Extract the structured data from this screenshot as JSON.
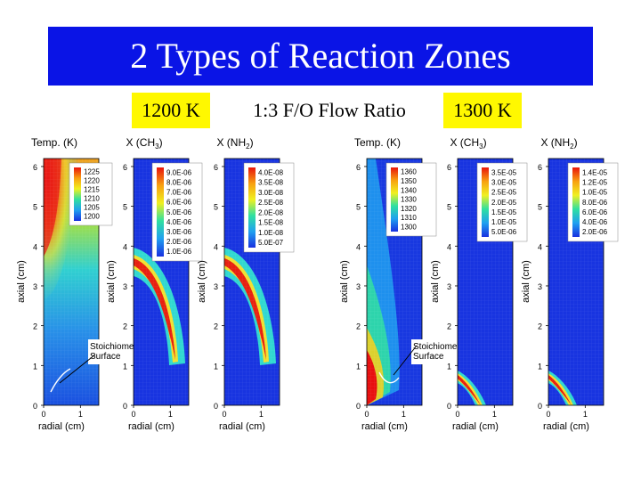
{
  "page": {
    "title": "2 Types of Reaction Zones",
    "left_condition": "1200 K",
    "center_condition": "1:3 F/O Flow Ratio",
    "right_condition": "1300 K"
  },
  "colors": {
    "title_bg": "#0a14e6",
    "highlight": "#fff800",
    "field_low": "#1430d8",
    "field_high": "#e81010"
  },
  "chart_data": [
    {
      "type": "heatmap",
      "title": "Temp. (K)",
      "xlabel": "radial (cm)",
      "ylabel": "axial (cm)",
      "xlim": [
        0,
        1.5
      ],
      "ylim": [
        0,
        6.2
      ],
      "xticks": [
        "0",
        "1"
      ],
      "yticks": [
        "0",
        "1",
        "2",
        "3",
        "4",
        "5",
        "6"
      ],
      "legend": [
        "1225",
        "1220",
        "1215",
        "1210",
        "1205",
        "1200"
      ],
      "annotation": [
        "Stoichiometric",
        "Surface"
      ]
    },
    {
      "type": "heatmap",
      "title": "X (CH3)",
      "xlabel": "radial (cm)",
      "ylabel": "axial (cm)",
      "xlim": [
        0,
        1.5
      ],
      "ylim": [
        0,
        6.2
      ],
      "xticks": [
        "0",
        "1"
      ],
      "yticks": [
        "0",
        "1",
        "2",
        "3",
        "4",
        "5",
        "6"
      ],
      "legend": [
        "9.0E-06",
        "8.0E-06",
        "7.0E-06",
        "6.0E-06",
        "5.0E-06",
        "4.0E-06",
        "3.0E-06",
        "2.0E-06",
        "1.0E-06"
      ]
    },
    {
      "type": "heatmap",
      "title": "X (NH2)",
      "xlabel": "radial (cm)",
      "ylabel": "axial (cm)",
      "xlim": [
        0,
        1.5
      ],
      "ylim": [
        0,
        6.2
      ],
      "xticks": [
        "0",
        "1"
      ],
      "yticks": [
        "0",
        "1",
        "2",
        "3",
        "4",
        "5",
        "6"
      ],
      "legend": [
        "4.0E-08",
        "3.5E-08",
        "3.0E-08",
        "2.5E-08",
        "2.0E-08",
        "1.5E-08",
        "1.0E-08",
        "5.0E-07"
      ]
    },
    {
      "type": "heatmap",
      "title": "Temp. (K)",
      "xlabel": "radial (cm)",
      "ylabel": "axial (cm)",
      "xlim": [
        0,
        1.5
      ],
      "ylim": [
        0,
        6.2
      ],
      "xticks": [
        "0",
        "1"
      ],
      "yticks": [
        "0",
        "1",
        "2",
        "3",
        "4",
        "5",
        "6"
      ],
      "legend": [
        "1360",
        "1350",
        "1340",
        "1330",
        "1320",
        "1310",
        "1300"
      ],
      "annotation": [
        "Stoichiometric",
        "Surface"
      ]
    },
    {
      "type": "heatmap",
      "title": "X (CH3)",
      "xlabel": "radial (cm)",
      "ylabel": "axial (cm)",
      "xlim": [
        0,
        1.5
      ],
      "ylim": [
        0,
        6.2
      ],
      "xticks": [
        "0",
        "1"
      ],
      "yticks": [
        "0",
        "1",
        "2",
        "3",
        "4",
        "5",
        "6"
      ],
      "legend": [
        "3.5E-05",
        "3.0E-05",
        "2.5E-05",
        "2.0E-05",
        "1.5E-05",
        "1.0E-05",
        "5.0E-06"
      ]
    },
    {
      "type": "heatmap",
      "title": "X (NH2)",
      "xlabel": "radial (cm)",
      "ylabel": "axial (cm)",
      "xlim": [
        0,
        1.5
      ],
      "ylim": [
        0,
        6.2
      ],
      "xticks": [
        "0",
        "1"
      ],
      "yticks": [
        "0",
        "1",
        "2",
        "3",
        "4",
        "5",
        "6"
      ],
      "legend": [
        "1.4E-05",
        "1.2E-05",
        "1.0E-05",
        "8.0E-06",
        "6.0E-06",
        "4.0E-06",
        "2.0E-06"
      ]
    }
  ]
}
